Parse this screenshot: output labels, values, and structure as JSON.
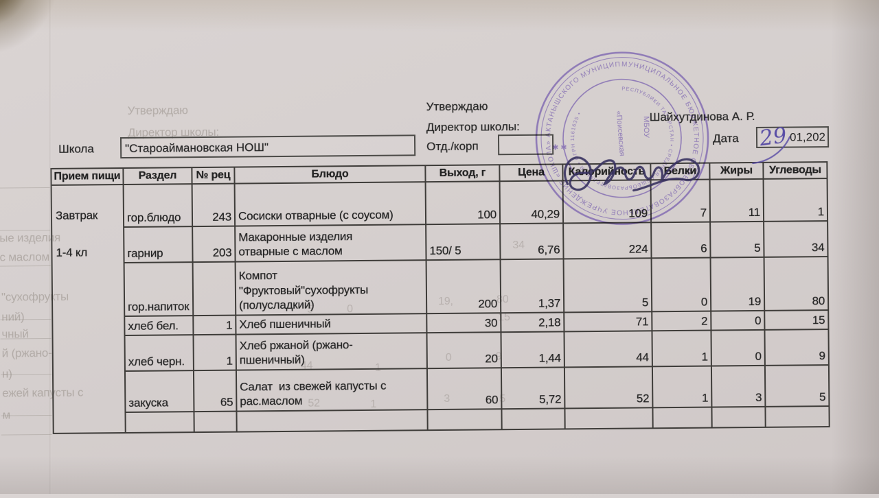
{
  "approval": {
    "approve_label": "Утверждаю",
    "director_label": "Директор школы:",
    "director_name": "Шайхутдинова А. Р."
  },
  "form": {
    "school_label": "Школа",
    "school_value": "\"Староаймановская НОШ\"",
    "dept_label": "Отд./корп",
    "dept_value": "",
    "date_label": "Дата",
    "date_handwritten": "29",
    "date_printed": "01,202"
  },
  "stamp": {
    "ring_text": "МУНИЦИПАЛЬНОЕ БЮДЖЕТНОЕ ОБЩЕОБРАЗОВАТЕЛЬНОЕ УЧРЕЖДЕНИЕ «ШКОЛА» АКТАНЫШСКОГО МУНИЦИПАЛЬНОГО РАЙОНА",
    "inner_ring_text": "РЕСПУБЛИКИ ТАТАРСТАН • СРЕДНЯЯ ОБЩЕОБРАЗОВАТЕЛЬНАЯ • ОГРН 1161635 •",
    "center_text_1": "«Поисевская",
    "center_text_2": "МБОУ",
    "stars": "✱ ✱",
    "color": "#7b63b0"
  },
  "table": {
    "columns": [
      "Прием пищи",
      "Раздел",
      "№ рец",
      "Блюдо",
      "Выход, г",
      "Цена",
      "Калорийность",
      "Белки",
      "Жиры",
      "Углеводы"
    ],
    "meal_labels": [
      "Завтрак",
      "1-4 кл"
    ],
    "rows": [
      {
        "section": "гор.блюдо",
        "rec": "243",
        "dish": "Сосиски отварные (с соусом)",
        "out": "100",
        "price": "40,29",
        "kcal": "109",
        "protein": "7",
        "fat": "11",
        "carbs": "1"
      },
      {
        "section": "гарнир",
        "rec": "203",
        "dish": "Макаронные изделия\nотварные с маслом",
        "out": "150/ 5",
        "price": "6,76",
        "kcal": "224",
        "protein": "6",
        "fat": "5",
        "carbs": "34"
      },
      {
        "section": "гор.напиток",
        "rec": "",
        "dish": "Компот\n\"Фруктовый\"сухофрукты\n(полусладкий)",
        "out": "200",
        "price": "1,37",
        "kcal": "5",
        "protein": "0",
        "fat": "19",
        "carbs": "80"
      },
      {
        "section": "хлеб бел.",
        "rec": "1",
        "dish": "Хлеб пшеничный",
        "out": "30",
        "price": "2,18",
        "kcal": "71",
        "protein": "2",
        "fat": "0",
        "carbs": "15"
      },
      {
        "section": "хлеб черн.",
        "rec": "1",
        "dish": "Хлеб ржаной (ржано-\nпшеничный)",
        "out": "20",
        "price": "1,44",
        "kcal": "44",
        "protein": "1",
        "fat": "0",
        "carbs": "9"
      },
      {
        "section": "закуска",
        "rec": "65",
        "dish": "Салат  из свежей капусты с\nрас.маслом",
        "out": "60",
        "price": "5,72",
        "kcal": "52",
        "protein": "1",
        "fat": "3",
        "carbs": "5"
      },
      {
        "section": "",
        "rec": "",
        "dish": "",
        "out": "",
        "price": "",
        "kcal": "",
        "protein": "",
        "fat": "",
        "carbs": ""
      }
    ]
  },
  "ghosts": {
    "fragments": [
      "Утверждаю",
      "Директор школы:",
      "ые изделия",
      "с маслом",
      "\"сухофрукты",
      "ний)",
      "чный",
      "й (ржано-",
      "н)",
      "ежей капусты с",
      "м"
    ],
    "numbers": [
      "34",
      "19,",
      "80",
      "5",
      "0",
      "15",
      "44",
      "1",
      "0",
      "9",
      "52",
      "1",
      "3",
      "5"
    ]
  }
}
